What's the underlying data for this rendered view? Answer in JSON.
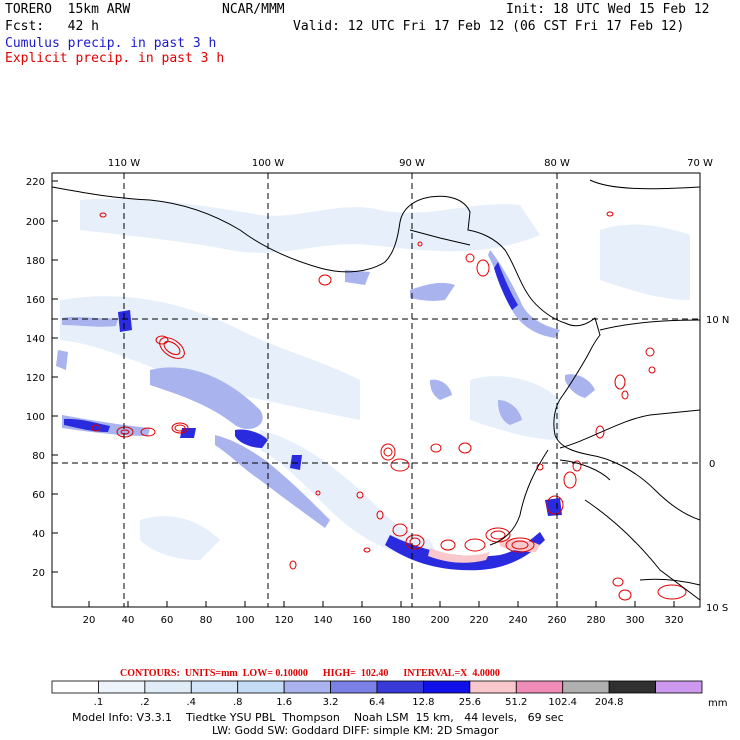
{
  "header": {
    "model": "TORERO  15km ARW",
    "org": "NCAR/MMM",
    "init": "Init: 18 UTC Wed 15 Feb 12",
    "fcst": "Fcst:   42 h",
    "valid": "Valid: 12 UTC Fri 17 Feb 12 (06 CST Fri 17 Feb 12)",
    "field1": "Cumulus precip. in past 3 h",
    "field2": "Explicit precip. in past 3 h",
    "field1_color": "#1a1acc",
    "field2_color": "#e00000"
  },
  "map": {
    "lon_labels": [
      "110 W",
      "100 W",
      "90 W",
      "80 W",
      "70 W"
    ],
    "lat_labels": [
      "10 N",
      "0",
      "10 S"
    ],
    "y_ticks": [
      "220",
      "200",
      "180",
      "160",
      "140",
      "120",
      "100",
      "80",
      "60",
      "40",
      "20"
    ],
    "x_ticks": [
      "20",
      "40",
      "60",
      "80",
      "100",
      "120",
      "140",
      "160",
      "180",
      "200",
      "220",
      "240",
      "260",
      "280",
      "300",
      "320"
    ]
  },
  "contours": {
    "label": "CONTOURS:  UNITS=mm  LOW= 0.10000      HIGH=  102.40      INTERVAL=X  4.0000"
  },
  "colorbar": {
    "labels": [
      ".1",
      ".2",
      ".4",
      ".8",
      "1.6",
      "3.2",
      "6.4",
      "12.8",
      "25.6",
      "51.2",
      "102.4",
      "204.8"
    ],
    "unit": "mm",
    "colors": [
      "#ffffff",
      "#eef4fb",
      "#e0ecf8",
      "#d2e4f7",
      "#c4dcf6",
      "#a9b3ee",
      "#7a80e6",
      "#3a3ad8",
      "#1010e8",
      "#f8c8cc",
      "#f08cb8",
      "#b0b0b0",
      "#303030",
      "#cc99ee"
    ]
  },
  "footer": {
    "line1": "Model Info: V3.3.1    Tiedtke YSU PBL  Thompson    Noah LSM  15 km,   44 levels,   69 sec",
    "line2": "LW: Godd SW: Goddard DIFF: simple KM: 2D Smagor"
  }
}
